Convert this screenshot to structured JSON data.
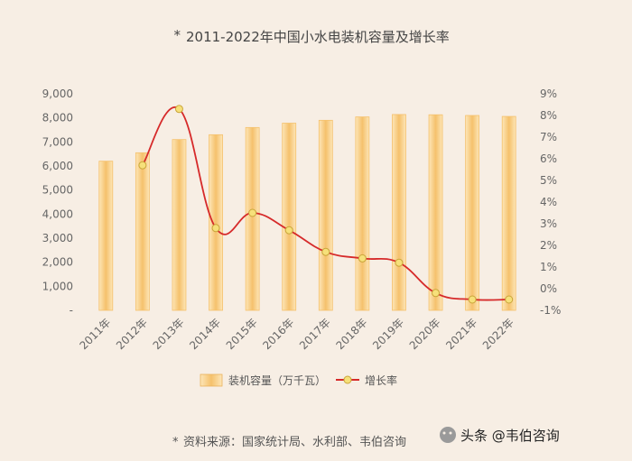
{
  "chart_data": {
    "type": "bar",
    "title": "2011-2022年中国小水电装机容量及增长率",
    "title_marker": "*",
    "categories": [
      "2011年",
      "2012年",
      "2013年",
      "2014年",
      "2015年",
      "2016年",
      "2017年",
      "2018年",
      "2019年",
      "2020年",
      "2021年",
      "2022年"
    ],
    "series": [
      {
        "name": "装机容量（万千瓦）",
        "type": "bar",
        "axis": "left",
        "values": [
          6200,
          6550,
          7100,
          7300,
          7600,
          7780,
          7900,
          8040,
          8140,
          8130,
          8100,
          8060
        ]
      },
      {
        "name": "增长率",
        "type": "line",
        "axis": "right",
        "values": [
          null,
          5.7,
          8.3,
          2.8,
          3.5,
          2.7,
          1.7,
          1.4,
          1.2,
          -0.2,
          -0.5,
          -0.5
        ]
      }
    ],
    "y_left": {
      "min": 0,
      "max": 9000,
      "ticks": [
        "-",
        "1,000",
        "2,000",
        "3,000",
        "4,000",
        "5,000",
        "6,000",
        "7,000",
        "8,000",
        "9,000"
      ]
    },
    "y_right": {
      "min": -1,
      "max": 9,
      "ticks": [
        "-1%",
        "0%",
        "1%",
        "2%",
        "3%",
        "4%",
        "5%",
        "6%",
        "7%",
        "8%",
        "9%"
      ]
    },
    "grid": false,
    "legend_position": "bottom",
    "colors": {
      "bar": "#f5c16c",
      "bar_light": "#fde6b8",
      "line": "#d62a2a",
      "marker_fill": "#f6e07a",
      "marker_stroke": "#c9a53a"
    }
  },
  "source": {
    "marker": "*",
    "text": "资料来源：国家统计局、水利部、韦伯咨询"
  },
  "watermark": {
    "text": "头条 @韦伯咨询",
    "icon": "wechat-icon"
  }
}
